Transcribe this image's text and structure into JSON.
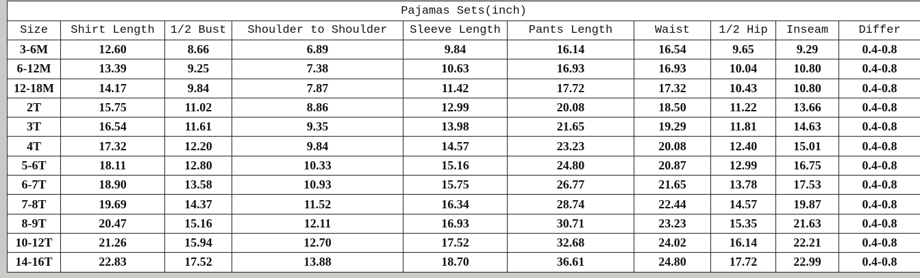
{
  "title": "Pajamas Sets(inch)",
  "headers": [
    "Size",
    "Shirt Length",
    "1/2 Bust",
    "Shoulder to Shoulder",
    "Sleeve Length",
    "Pants Length",
    "Waist",
    "1/2 Hip",
    "Inseam",
    "Differ"
  ],
  "rows": [
    [
      "3-6M",
      "12.60",
      "8.66",
      "6.89",
      "9.84",
      "16.14",
      "16.54",
      "9.65",
      "9.29",
      "0.4-0.8"
    ],
    [
      "6-12M",
      "13.39",
      "9.25",
      "7.38",
      "10.63",
      "16.93",
      "16.93",
      "10.04",
      "10.80",
      "0.4-0.8"
    ],
    [
      "12-18M",
      "14.17",
      "9.84",
      "7.87",
      "11.42",
      "17.72",
      "17.32",
      "10.43",
      "10.80",
      "0.4-0.8"
    ],
    [
      "2T",
      "15.75",
      "11.02",
      "8.86",
      "12.99",
      "20.08",
      "18.50",
      "11.22",
      "13.66",
      "0.4-0.8"
    ],
    [
      "3T",
      "16.54",
      "11.61",
      "9.35",
      "13.98",
      "21.65",
      "19.29",
      "11.81",
      "14.63",
      "0.4-0.8"
    ],
    [
      "4T",
      "17.32",
      "12.20",
      "9.84",
      "14.57",
      "23.23",
      "20.08",
      "12.40",
      "15.01",
      "0.4-0.8"
    ],
    [
      "5-6T",
      "18.11",
      "12.80",
      "10.33",
      "15.16",
      "24.80",
      "20.87",
      "12.99",
      "16.75",
      "0.4-0.8"
    ],
    [
      "6-7T",
      "18.90",
      "13.58",
      "10.93",
      "15.75",
      "26.77",
      "21.65",
      "13.78",
      "17.53",
      "0.4-0.8"
    ],
    [
      "7-8T",
      "19.69",
      "14.37",
      "11.52",
      "16.34",
      "28.74",
      "22.44",
      "14.57",
      "19.87",
      "0.4-0.8"
    ],
    [
      "8-9T",
      "20.47",
      "15.16",
      "12.11",
      "16.93",
      "30.71",
      "23.23",
      "15.35",
      "21.63",
      "0.4-0.8"
    ],
    [
      "10-12T",
      "21.26",
      "15.94",
      "12.70",
      "17.52",
      "32.68",
      "24.02",
      "16.14",
      "22.21",
      "0.4-0.8"
    ],
    [
      "14-16T",
      "22.83",
      "17.52",
      "13.88",
      "18.70",
      "36.61",
      "24.80",
      "17.72",
      "22.99",
      "0.4-0.8"
    ]
  ]
}
